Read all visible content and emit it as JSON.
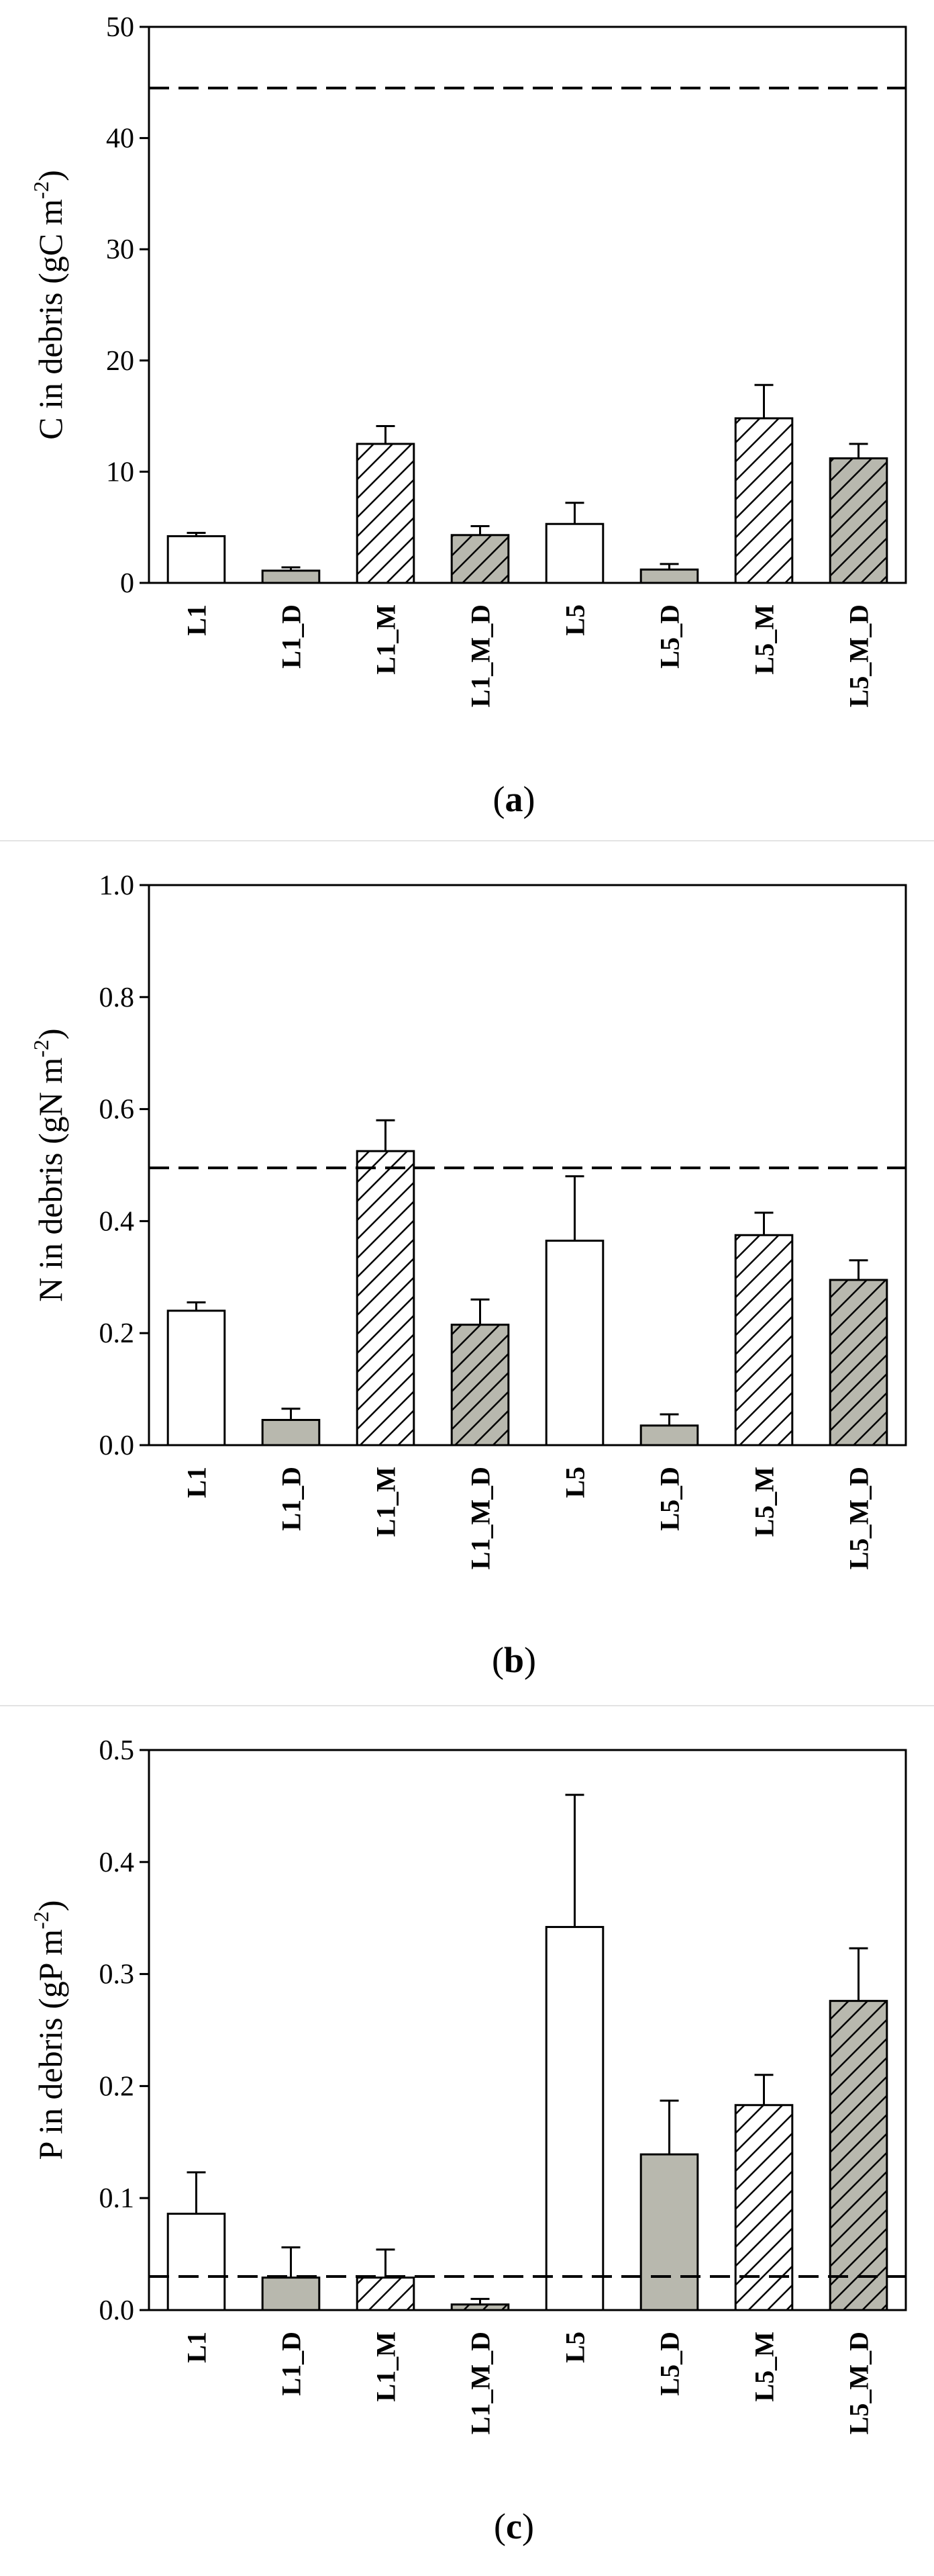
{
  "colors": {
    "open": "#ffffff",
    "gray": "#b8b8ae",
    "stroke": "#000000",
    "separator": "#e3e3e3"
  },
  "chart_data": [
    {
      "type": "bar",
      "panel_label": "a",
      "categories": [
        "L1",
        "L1_D",
        "L1_M",
        "L1_M_D",
        "L5",
        "L5_D",
        "L5_M",
        "L5_M_D"
      ],
      "fills": [
        "open",
        "gray",
        "hatch",
        "gray-hatch",
        "open",
        "gray",
        "hatch",
        "gray-hatch"
      ],
      "values": [
        4.2,
        1.1,
        12.5,
        4.3,
        5.3,
        1.2,
        14.8,
        11.2
      ],
      "errors": [
        0.3,
        0.3,
        1.6,
        0.8,
        1.9,
        0.5,
        3.0,
        1.3
      ],
      "reference_line": 44.5,
      "ylabel_main": "C in debris (gC m",
      "ylabel_sup": "-2",
      "ylabel_close": ")",
      "ylim": [
        0,
        50
      ],
      "yticks": [
        0,
        10,
        20,
        30,
        40,
        50
      ],
      "ytick_labels": [
        "0",
        "10",
        "20",
        "30",
        "40",
        "50"
      ]
    },
    {
      "type": "bar",
      "panel_label": "b",
      "categories": [
        "L1",
        "L1_D",
        "L1_M",
        "L1_M_D",
        "L5",
        "L5_D",
        "L5_M",
        "L5_M_D"
      ],
      "fills": [
        "open",
        "gray",
        "hatch",
        "gray-hatch",
        "open",
        "gray",
        "hatch",
        "gray-hatch"
      ],
      "values": [
        0.24,
        0.045,
        0.525,
        0.215,
        0.365,
        0.035,
        0.375,
        0.295
      ],
      "errors": [
        0.015,
        0.02,
        0.055,
        0.045,
        0.115,
        0.02,
        0.04,
        0.035
      ],
      "reference_line": 0.495,
      "ylabel_main": "N in debris (gN m",
      "ylabel_sup": "-2",
      "ylabel_close": ")",
      "ylim": [
        0,
        1.0
      ],
      "yticks": [
        0,
        0.2,
        0.4,
        0.6,
        0.8,
        1.0
      ],
      "ytick_labels": [
        "0.0",
        "0.2",
        "0.4",
        "0.6",
        "0.8",
        "1.0"
      ]
    },
    {
      "type": "bar",
      "panel_label": "c",
      "categories": [
        "L1",
        "L1_D",
        "L1_M",
        "L1_M_D",
        "L5",
        "L5_D",
        "L5_M",
        "L5_M_D"
      ],
      "fills": [
        "open",
        "gray",
        "hatch",
        "gray-hatch",
        "open",
        "gray",
        "hatch",
        "gray-hatch"
      ],
      "values": [
        0.086,
        0.029,
        0.029,
        0.005,
        0.342,
        0.139,
        0.183,
        0.276
      ],
      "errors": [
        0.037,
        0.027,
        0.025,
        0.005,
        0.118,
        0.048,
        0.027,
        0.047
      ],
      "reference_line": 0.03,
      "ylabel_main": "P in debris (gP m",
      "ylabel_sup": "-2",
      "ylabel_close": ")",
      "ylim": [
        0,
        0.5
      ],
      "yticks": [
        0,
        0.1,
        0.2,
        0.3,
        0.4,
        0.5
      ],
      "ytick_labels": [
        "0.0",
        "0.1",
        "0.2",
        "0.3",
        "0.4",
        "0.5"
      ]
    }
  ]
}
